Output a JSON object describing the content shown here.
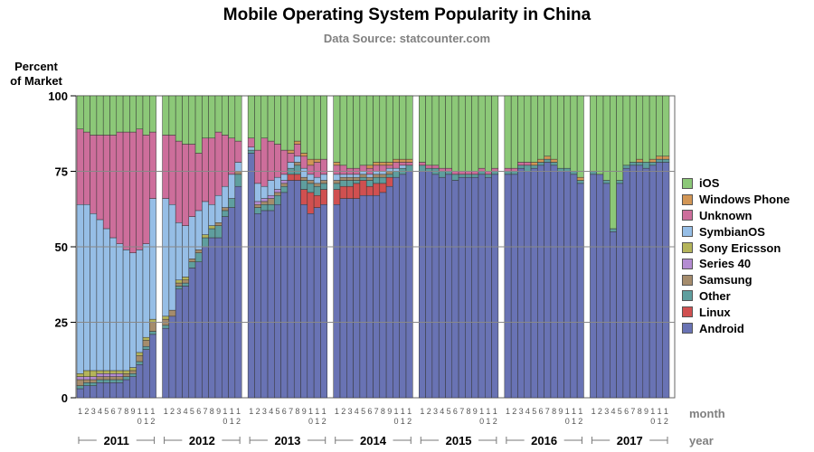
{
  "chart_data": {
    "type": "bar",
    "stacked": true,
    "title": "Mobile Operating System Popularity in China",
    "subtitle": "Data Source: statcounter.com",
    "ylabel": [
      "Percent",
      "of Market"
    ],
    "ylim": [
      0,
      100
    ],
    "yticks": [
      0,
      25,
      50,
      75,
      100
    ],
    "grid": true,
    "xlabel_month": "month",
    "xlabel_year": "year",
    "years": [
      "2011",
      "2012",
      "2013",
      "2014",
      "2015",
      "2016",
      "2017"
    ],
    "month_labels": [
      "1",
      "2",
      "3",
      "4",
      "5",
      "6",
      "7",
      "8",
      "9",
      "10",
      "11",
      "12"
    ],
    "legend_position": "right",
    "series": [
      {
        "name": "Android",
        "color": "#6973b4"
      },
      {
        "name": "Linux",
        "color": "#d05050"
      },
      {
        "name": "Other",
        "color": "#5f9e9e"
      },
      {
        "name": "Samsung",
        "color": "#a58c6c"
      },
      {
        "name": "Series 40",
        "color": "#b48cd2"
      },
      {
        "name": "Sony Ericsson",
        "color": "#b4b45a"
      },
      {
        "name": "SymbianOS",
        "color": "#96bee6"
      },
      {
        "name": "Unknown",
        "color": "#cd6e9b"
      },
      {
        "name": "Windows Phone",
        "color": "#d29655"
      },
      {
        "name": "iOS",
        "color": "#8cc878"
      }
    ],
    "legend_order": [
      "iOS",
      "Windows Phone",
      "Unknown",
      "SymbianOS",
      "Sony Ericsson",
      "Series 40",
      "Samsung",
      "Other",
      "Linux",
      "Android"
    ],
    "boundaries_note": "each month lists cumulative stack tops: Android, Linux, Other, Samsung, Series 40, Sony Ericsson, SymbianOS, Unknown, Windows Phone; iOS fills to 100",
    "data": {
      "2011": [
        [
          3,
          3,
          4,
          6,
          7,
          8,
          64,
          89,
          89
        ],
        [
          4,
          4,
          5,
          6,
          7,
          9,
          64,
          88,
          88
        ],
        [
          4,
          4,
          5,
          6,
          7,
          9,
          61,
          87,
          87
        ],
        [
          5,
          5,
          6,
          7,
          8,
          9,
          59,
          87,
          87
        ],
        [
          5,
          5,
          6,
          7,
          8,
          9,
          56,
          87,
          87
        ],
        [
          5,
          5,
          6,
          7,
          8,
          9,
          53,
          87,
          87
        ],
        [
          5,
          5,
          6,
          7,
          8,
          9,
          51,
          88,
          88
        ],
        [
          6,
          6,
          7,
          8,
          8,
          9,
          49,
          88,
          88
        ],
        [
          7,
          7,
          8,
          9,
          9,
          10,
          48,
          88,
          88
        ],
        [
          11,
          11,
          12,
          14,
          14,
          15,
          49,
          89,
          89
        ],
        [
          16,
          16,
          17,
          19,
          19,
          20,
          51,
          87,
          87
        ],
        [
          21,
          21,
          22,
          25,
          25,
          26,
          66,
          88,
          88
        ]
      ],
      "2012": [
        [
          23,
          23,
          24,
          26,
          26,
          27,
          66,
          87,
          87
        ],
        [
          27,
          27,
          27,
          29,
          29,
          29,
          64,
          87,
          87
        ],
        [
          36,
          36,
          37,
          38,
          38,
          39,
          58,
          85,
          85
        ],
        [
          37,
          37,
          38,
          39,
          39,
          40,
          57,
          84,
          84
        ],
        [
          43,
          43,
          45,
          46,
          46,
          46,
          60,
          84,
          84
        ],
        [
          45,
          45,
          48,
          49,
          49,
          49,
          62,
          81,
          81
        ],
        [
          50,
          50,
          53,
          53,
          53,
          54,
          65,
          86,
          86
        ],
        [
          53,
          53,
          56,
          56,
          56,
          57,
          64,
          86,
          86
        ],
        [
          53,
          53,
          57,
          58,
          58,
          58,
          67,
          88,
          88
        ],
        [
          60,
          60,
          62,
          63,
          63,
          63,
          70,
          87,
          87
        ],
        [
          63,
          63,
          66,
          66,
          66,
          66,
          74,
          86,
          86
        ],
        [
          70,
          70,
          74,
          75,
          75,
          75,
          78,
          85,
          85
        ]
      ],
      "2013": [
        [
          81,
          81,
          82,
          82,
          82,
          82,
          83,
          86,
          86
        ],
        [
          61,
          61,
          63,
          64,
          65,
          65,
          71,
          82,
          82
        ],
        [
          62,
          62,
          64,
          65,
          66,
          66,
          70,
          86,
          86
        ],
        [
          62,
          62,
          64,
          66,
          67,
          67,
          72,
          85,
          85
        ],
        [
          64,
          64,
          67,
          68,
          69,
          69,
          73,
          84,
          84
        ],
        [
          68,
          68,
          70,
          71,
          72,
          72,
          74,
          82,
          82
        ],
        [
          72,
          74,
          76,
          76,
          76,
          76,
          78,
          81,
          82
        ],
        [
          72,
          74,
          77,
          78,
          78,
          78,
          80,
          84,
          85
        ],
        [
          64,
          69,
          72,
          73,
          73,
          73,
          76,
          80,
          81
        ],
        [
          61,
          68,
          71,
          72,
          72,
          72,
          74,
          77,
          79
        ],
        [
          63,
          67,
          70,
          71,
          71,
          71,
          73,
          78,
          79
        ],
        [
          64,
          69,
          71,
          72,
          72,
          72,
          74,
          79,
          79
        ]
      ],
      "2014": [
        [
          64,
          69,
          71,
          72,
          72,
          72,
          74,
          77,
          78
        ],
        [
          66,
          70,
          72,
          73,
          73,
          73,
          74,
          77,
          77
        ],
        [
          66,
          70,
          72,
          73,
          73,
          73,
          74,
          76,
          76
        ],
        [
          66,
          71,
          72,
          73,
          73,
          73,
          74,
          76,
          76
        ],
        [
          67,
          72,
          73,
          74,
          74,
          74,
          75,
          77,
          77
        ],
        [
          67,
          70,
          72,
          73,
          73,
          73,
          74,
          76,
          77
        ],
        [
          67,
          71,
          73,
          74,
          74,
          74,
          75,
          77,
          78
        ],
        [
          68,
          71,
          73,
          74,
          74,
          74,
          75,
          77,
          78
        ],
        [
          70,
          73,
          74,
          75,
          75,
          75,
          76,
          77,
          78
        ],
        [
          73,
          73,
          75,
          75,
          75,
          75,
          76,
          78,
          79
        ],
        [
          74,
          74,
          76,
          76,
          76,
          76,
          77,
          78,
          79
        ],
        [
          75,
          75,
          77,
          77,
          77,
          77,
          77,
          78,
          79
        ]
      ],
      "2015": [
        [
          75,
          75,
          77,
          77,
          77,
          77,
          77,
          78,
          78
        ],
        [
          75,
          75,
          76,
          76,
          76,
          76,
          76,
          77,
          77
        ],
        [
          74,
          74,
          76,
          76,
          76,
          76,
          76,
          77,
          77
        ],
        [
          73,
          73,
          75,
          75,
          75,
          75,
          75,
          76,
          76
        ],
        [
          74,
          74,
          75,
          75,
          75,
          75,
          75,
          76,
          76
        ],
        [
          72,
          72,
          74,
          74,
          74,
          74,
          74,
          75,
          75
        ],
        [
          73,
          73,
          74,
          74,
          74,
          74,
          74,
          75,
          75
        ],
        [
          73,
          73,
          74,
          74,
          74,
          74,
          74,
          75,
          75
        ],
        [
          73,
          73,
          74,
          74,
          74,
          74,
          74,
          75,
          75
        ],
        [
          74,
          74,
          75,
          75,
          75,
          75,
          75,
          76,
          76
        ],
        [
          73,
          73,
          74,
          74,
          74,
          74,
          74,
          75,
          75
        ],
        [
          74,
          74,
          75,
          75,
          75,
          75,
          75,
          76,
          76
        ]
      ],
      "2016": [
        [
          74,
          74,
          75,
          75,
          75,
          75,
          75,
          76,
          76
        ],
        [
          74,
          74,
          75,
          75,
          75,
          75,
          75,
          76,
          76
        ],
        [
          76,
          76,
          77,
          77,
          77,
          77,
          77,
          78,
          78
        ],
        [
          75,
          75,
          77,
          77,
          77,
          77,
          77,
          78,
          78
        ],
        [
          76,
          76,
          77,
          77,
          77,
          77,
          77,
          77,
          78
        ],
        [
          77,
          77,
          78,
          78,
          78,
          78,
          78,
          78,
          79
        ],
        [
          78,
          78,
          79,
          79,
          79,
          79,
          79,
          79,
          80
        ],
        [
          77,
          77,
          78,
          78,
          78,
          78,
          78,
          78,
          79
        ],
        [
          75,
          75,
          76,
          76,
          76,
          76,
          76,
          76,
          76
        ],
        [
          75,
          75,
          76,
          76,
          76,
          76,
          76,
          76,
          76
        ],
        [
          74,
          74,
          75,
          75,
          75,
          75,
          75,
          75,
          75
        ],
        [
          71,
          71,
          72,
          72,
          72,
          72,
          72,
          72,
          73
        ]
      ],
      "2017": [
        [
          74,
          74,
          75,
          75,
          75,
          75,
          75,
          75,
          75
        ],
        [
          74,
          74,
          74,
          74,
          74,
          74,
          74,
          74,
          74
        ],
        [
          71,
          71,
          72,
          72,
          72,
          72,
          72,
          72,
          72
        ],
        [
          55,
          55,
          56,
          56,
          56,
          56,
          56,
          56,
          56
        ],
        [
          71,
          71,
          72,
          72,
          72,
          72,
          72,
          72,
          72
        ],
        [
          76,
          76,
          77,
          77,
          77,
          77,
          77,
          77,
          77
        ],
        [
          77,
          77,
          78,
          78,
          78,
          78,
          78,
          78,
          78
        ],
        [
          77,
          77,
          78,
          78,
          78,
          78,
          78,
          78,
          79
        ],
        [
          76,
          76,
          78,
          78,
          78,
          78,
          78,
          78,
          78
        ],
        [
          77,
          77,
          78,
          78,
          78,
          78,
          78,
          78,
          79
        ],
        [
          78,
          78,
          79,
          79,
          79,
          79,
          79,
          79,
          80
        ],
        [
          78,
          78,
          79,
          79,
          79,
          79,
          79,
          79,
          80
        ]
      ]
    }
  }
}
